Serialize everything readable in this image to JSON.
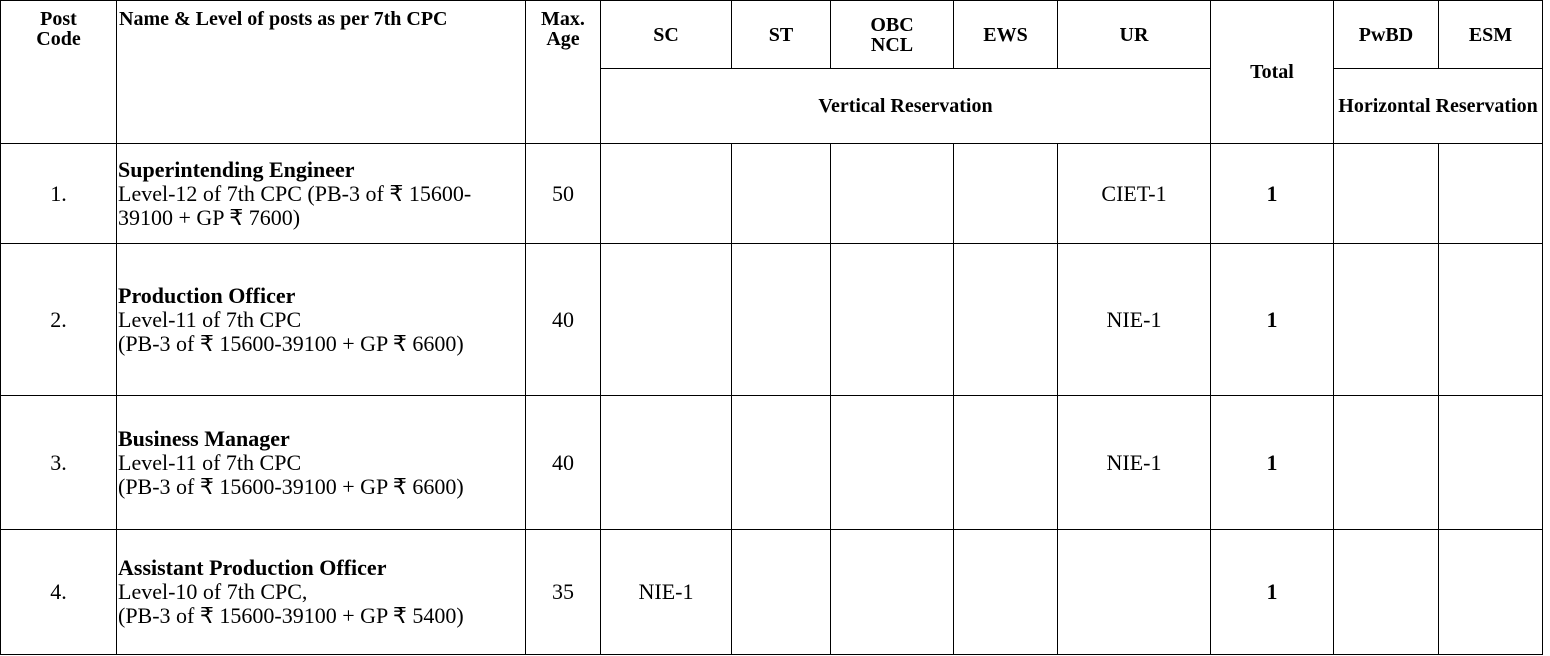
{
  "header": {
    "post_code": "Post Code",
    "name": "Name & Level of posts as per 7th CPC",
    "max_age": "Max. Age",
    "sc": "SC",
    "st": "ST",
    "obc_ncl": "OBC NCL",
    "ews": "EWS",
    "ur": "UR",
    "total": "Total",
    "pwbd": "PwBD",
    "esm": "ESM",
    "vertical": "Vertical Reservation",
    "horizontal": "Horizontal Reservation"
  },
  "rows": [
    {
      "post_code": "1.",
      "name": "Superintending Engineer",
      "details": [
        "Level-12 of 7th CPC (PB-3 of ₹ 15600-39100 + GP ₹ 7600)"
      ],
      "max_age": 50,
      "cells": {
        "ur": "CIET-1"
      },
      "total": 1
    },
    {
      "post_code": "2.",
      "name": "Production Officer",
      "details": [
        "Level-11 of 7th CPC",
        "(PB-3 of ₹ 15600-39100 + GP ₹ 6600)"
      ],
      "max_age": 40,
      "cells": {
        "ur": "NIE-1"
      },
      "total": 1
    },
    {
      "post_code": "3.",
      "name": "Business Manager",
      "details": [
        "Level-11 of 7th CPC",
        "(PB-3 of ₹ 15600-39100 + GP ₹ 6600)"
      ],
      "max_age": 40,
      "cells": {
        "ur": "NIE-1"
      },
      "total": 1
    },
    {
      "post_code": "4.",
      "name": "Assistant Production Officer",
      "details": [
        "Level-10 of 7th CPC,",
        "(PB-3 of ₹ 15600-39100 + GP ₹ 5400)"
      ],
      "max_age": 35,
      "cells": {
        "sc": "NIE-1"
      },
      "total": 1
    }
  ]
}
